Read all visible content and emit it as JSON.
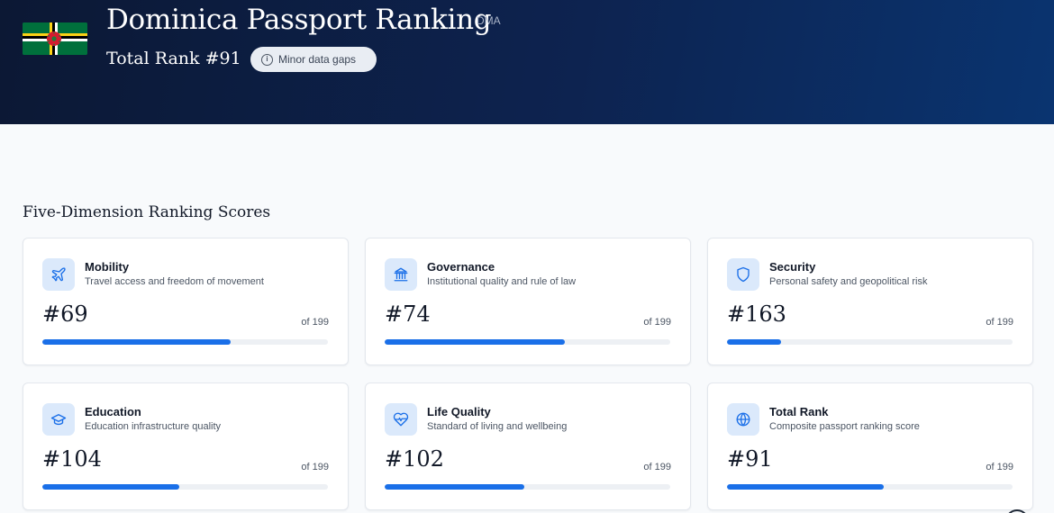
{
  "header": {
    "title": "Dominica Passport Ranking",
    "code": "DMA",
    "total_rank": "Total Rank #91",
    "badge": "Minor data gaps",
    "flag_colors": {
      "green": "#00703c",
      "yellow": "#fcd116",
      "black": "#000000",
      "white": "#ffffff",
      "red": "#d41c30"
    }
  },
  "section_title": "Five-Dimension Ranking Scores",
  "accent_color": "#1a6fe8",
  "cards": [
    {
      "name": "Mobility",
      "desc": "Travel access and freedom of movement",
      "rank": "#69",
      "of": "of 199",
      "icon": "airplane-icon",
      "progress": 0.66
    },
    {
      "name": "Governance",
      "desc": "Institutional quality and rule of law",
      "rank": "#74",
      "of": "of 199",
      "icon": "institution-icon",
      "progress": 0.63
    },
    {
      "name": "Security",
      "desc": "Personal safety and geopolitical risk",
      "rank": "#163",
      "of": "of 199",
      "icon": "shield-icon",
      "progress": 0.19
    },
    {
      "name": "Education",
      "desc": "Education infrastructure quality",
      "rank": "#104",
      "of": "of 199",
      "icon": "graduation-cap-icon",
      "progress": 0.48
    },
    {
      "name": "Life Quality",
      "desc": "Standard of living and wellbeing",
      "rank": "#102",
      "of": "of 199",
      "icon": "heart-pulse-icon",
      "progress": 0.49
    },
    {
      "name": "Total Rank",
      "desc": "Composite passport ranking score",
      "rank": "#91",
      "of": "of 199",
      "icon": "globe-icon",
      "progress": 0.55
    }
  ]
}
